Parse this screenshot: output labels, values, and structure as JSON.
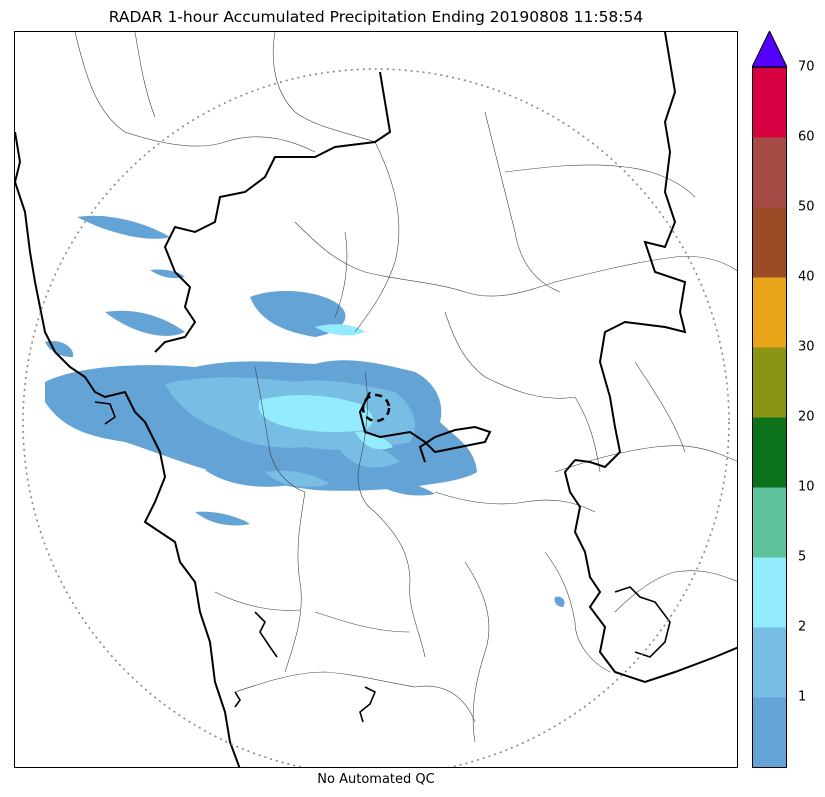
{
  "title": "RADAR 1-hour Accumulated Precipitation Ending 20190808 11:58:54",
  "footer_note": "No Automated QC",
  "colorbar": {
    "levels": [
      {
        "label": "",
        "color": "#64a3d6"
      },
      {
        "label": "1",
        "color": "#78bde3"
      },
      {
        "label": "2",
        "color": "#93ecfd"
      },
      {
        "label": "5",
        "color": "#5dc39a"
      },
      {
        "label": "10",
        "color": "#0c7219"
      },
      {
        "label": "20",
        "color": "#8a9516"
      },
      {
        "label": "30",
        "color": "#e8a51a"
      },
      {
        "label": "40",
        "color": "#9b4c27"
      },
      {
        "label": "50",
        "color": "#a64a45"
      },
      {
        "label": "60",
        "color": "#d60043"
      }
    ],
    "top_label": "70",
    "extend_color": "#5500ff"
  },
  "colors": {
    "light_blue": "#64a3d6",
    "mid_blue": "#78bde3",
    "cyan": "#93ecfd",
    "radar_ring": "#888888"
  }
}
